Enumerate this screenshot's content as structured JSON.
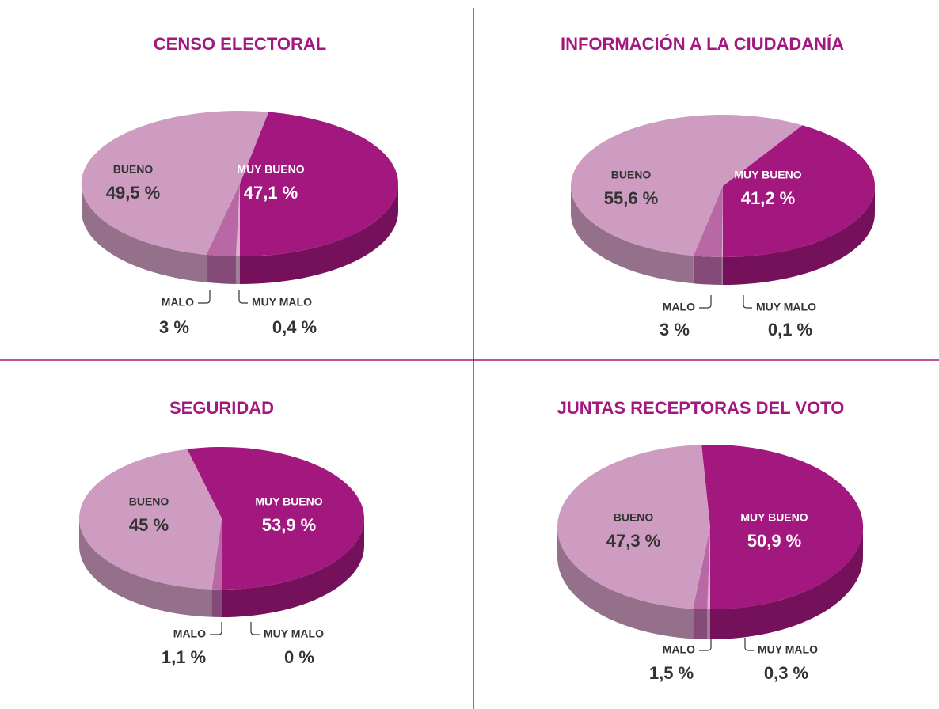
{
  "chart_data": [
    {
      "type": "pie",
      "title": "CENSO ELECTORAL",
      "categories": [
        "MUY BUENO",
        "MUY MALO",
        "MALO",
        "BUENO"
      ],
      "values": [
        47.1,
        0.4,
        3,
        49.5
      ],
      "value_labels": [
        "47,1 %",
        "0,4 %",
        "3 %",
        "49,5 %"
      ],
      "colors": [
        "#a3187e",
        "#dcb0d0",
        "#b968a6",
        "#cf9cc1"
      ]
    },
    {
      "type": "pie",
      "title": "INFORMACIÓN A LA CIUDADANÍA",
      "categories": [
        "MUY BUENO",
        "MUY MALO",
        "MALO",
        "BUENO"
      ],
      "values": [
        41.2,
        0.1,
        3,
        55.6
      ],
      "value_labels": [
        "41,2 %",
        "0,1 %",
        "3 %",
        "55,6 %"
      ],
      "colors": [
        "#a3187e",
        "#dcb0d0",
        "#b968a6",
        "#cf9cc1"
      ]
    },
    {
      "type": "pie",
      "title": "SEGURIDAD",
      "categories": [
        "MUY BUENO",
        "MUY MALO",
        "MALO",
        "BUENO"
      ],
      "values": [
        53.9,
        0,
        1.1,
        45
      ],
      "value_labels": [
        "53,9 %",
        "0 %",
        "1,1 %",
        "45 %"
      ],
      "colors": [
        "#a3187e",
        "#dcb0d0",
        "#b968a6",
        "#cf9cc1"
      ]
    },
    {
      "type": "pie",
      "title": "JUNTAS RECEPTORAS DEL VOTO",
      "categories": [
        "MUY BUENO",
        "MUY MALO",
        "MALO",
        "BUENO"
      ],
      "values": [
        50.9,
        0.3,
        1.5,
        47.3
      ],
      "value_labels": [
        "50,9 %",
        "0,3 %",
        "1,5 %",
        "47,3 %"
      ],
      "colors": [
        "#a3187e",
        "#dcb0d0",
        "#b968a6",
        "#cf9cc1"
      ]
    }
  ]
}
